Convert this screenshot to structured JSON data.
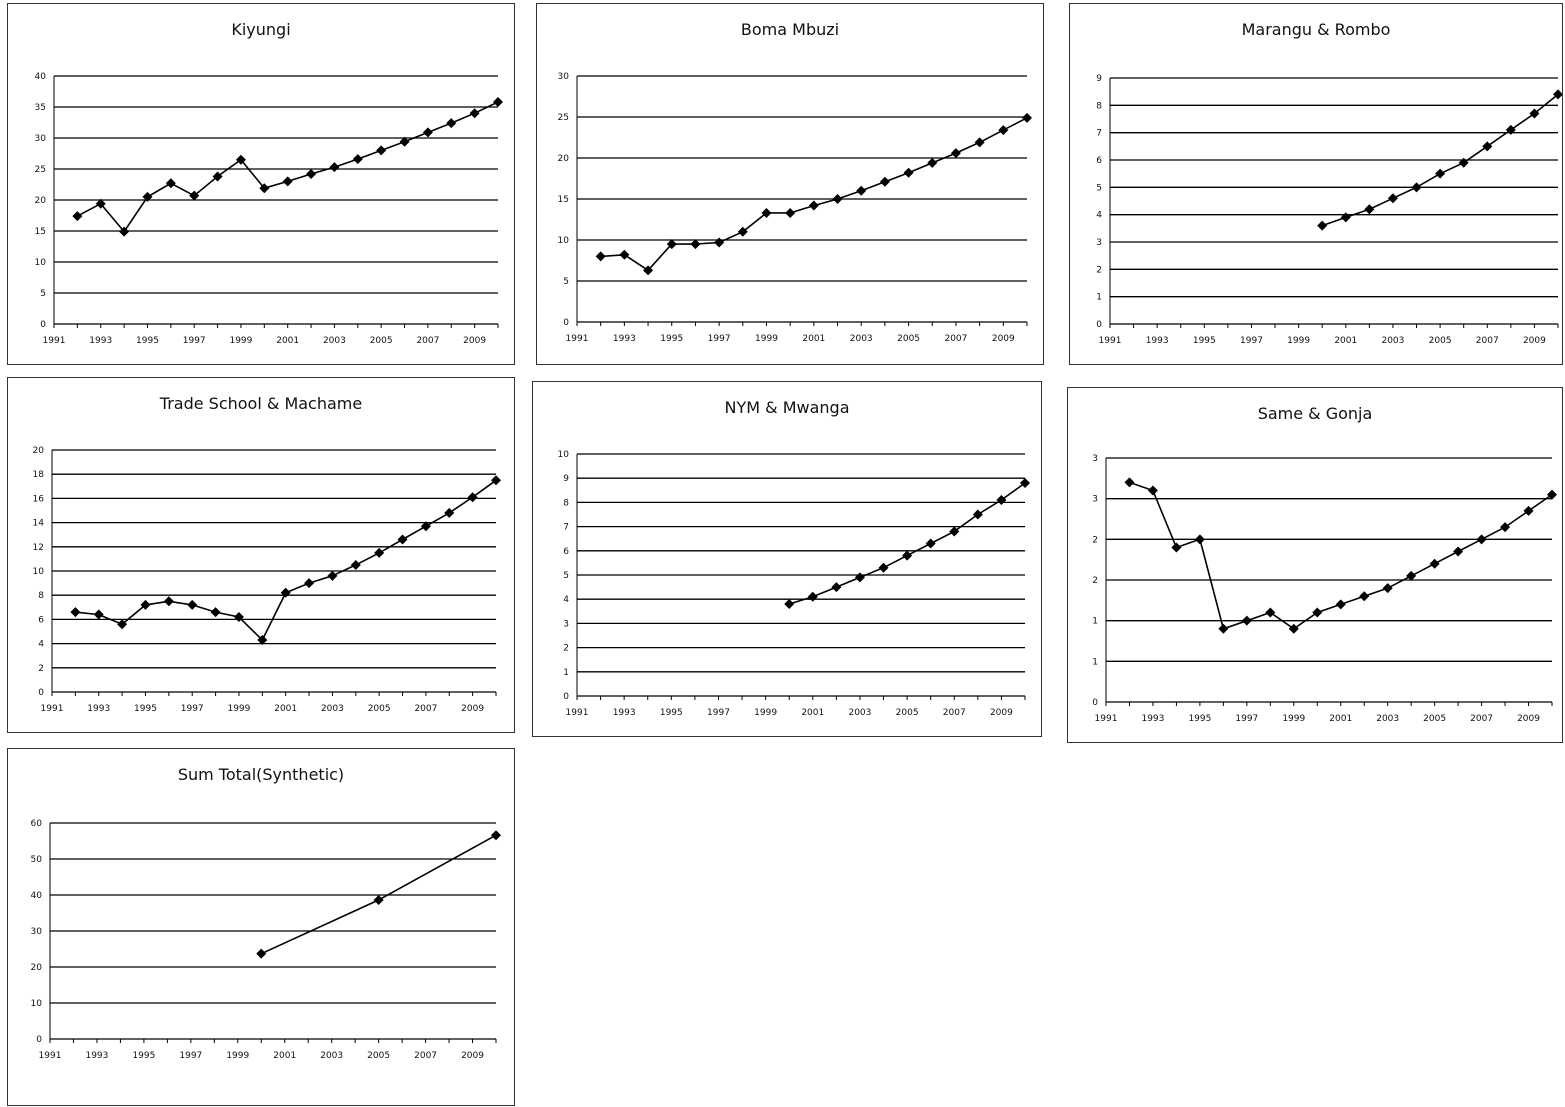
{
  "chart_data": [
    {
      "type": "line",
      "title": "Kiyungi",
      "x": [
        1992,
        1993,
        1994,
        1995,
        1996,
        1997,
        1998,
        1999,
        2000,
        2001,
        2002,
        2003,
        2004,
        2005,
        2006,
        2007,
        2008,
        2009,
        2010
      ],
      "values": [
        17.4,
        19.4,
        14.9,
        20.5,
        22.7,
        20.7,
        23.8,
        26.5,
        21.9,
        23.0,
        24.2,
        25.3,
        26.6,
        28.0,
        29.4,
        30.9,
        32.4,
        34.0,
        35.8
      ],
      "ylim": [
        0,
        40
      ],
      "yticks": [
        0,
        5,
        10,
        15,
        20,
        25,
        30,
        35,
        40
      ],
      "xlim": [
        1991,
        2010
      ],
      "xticks": [
        1991,
        1993,
        1995,
        1997,
        1999,
        2001,
        2003,
        2005,
        2007,
        2009
      ],
      "xlabel": "",
      "ylabel": "",
      "grid": true,
      "legend": "none"
    },
    {
      "type": "line",
      "title": "Boma Mbuzi",
      "x": [
        1992,
        1993,
        1994,
        1995,
        1996,
        1997,
        1998,
        1999,
        2000,
        2001,
        2002,
        2003,
        2004,
        2005,
        2006,
        2007,
        2008,
        2009,
        2010
      ],
      "values": [
        8.0,
        8.2,
        6.3,
        9.5,
        9.5,
        9.7,
        11.0,
        13.3,
        13.3,
        14.2,
        15.0,
        16.0,
        17.1,
        18.2,
        19.4,
        20.6,
        21.9,
        23.4,
        24.9
      ],
      "ylim": [
        0,
        30
      ],
      "yticks": [
        0,
        5,
        10,
        15,
        20,
        25,
        30
      ],
      "xlim": [
        1991,
        2010
      ],
      "xticks": [
        1991,
        1993,
        1995,
        1997,
        1999,
        2001,
        2003,
        2005,
        2007,
        2009
      ],
      "xlabel": "",
      "ylabel": "",
      "grid": true,
      "legend": "none"
    },
    {
      "type": "line",
      "title": "Marangu & Rombo",
      "x": [
        2000,
        2001,
        2002,
        2003,
        2004,
        2005,
        2006,
        2007,
        2008,
        2009,
        2010
      ],
      "values": [
        3.6,
        3.9,
        4.2,
        4.6,
        5.0,
        5.5,
        5.9,
        6.5,
        7.1,
        7.7,
        8.4
      ],
      "ylim": [
        0,
        9
      ],
      "yticks": [
        0,
        1,
        2,
        3,
        4,
        5,
        6,
        7,
        8,
        9
      ],
      "xlim": [
        1991,
        2010
      ],
      "xticks": [
        1991,
        1993,
        1995,
        1997,
        1999,
        2001,
        2003,
        2005,
        2007,
        2009
      ],
      "xlabel": "",
      "ylabel": "",
      "grid": true,
      "legend": "none"
    },
    {
      "type": "line",
      "title": "Trade School & Machame",
      "x": [
        1992,
        1993,
        1994,
        1995,
        1996,
        1997,
        1998,
        1999,
        2000,
        2001,
        2002,
        2003,
        2004,
        2005,
        2006,
        2007,
        2008,
        2009,
        2010
      ],
      "values": [
        6.6,
        6.4,
        5.6,
        7.2,
        7.5,
        7.2,
        6.6,
        6.2,
        4.3,
        8.2,
        9.0,
        9.6,
        10.5,
        11.5,
        12.6,
        13.7,
        14.8,
        16.1,
        17.5
      ],
      "ylim": [
        0,
        20
      ],
      "yticks": [
        0,
        2,
        4,
        6,
        8,
        10,
        12,
        14,
        16,
        18,
        20
      ],
      "xlim": [
        1991,
        2010
      ],
      "xticks": [
        1991,
        1993,
        1995,
        1997,
        1999,
        2001,
        2003,
        2005,
        2007,
        2009
      ],
      "xlabel": "",
      "ylabel": "",
      "grid": true,
      "legend": "none"
    },
    {
      "type": "line",
      "title": "NYM & Mwanga",
      "x": [
        2000,
        2001,
        2002,
        2003,
        2004,
        2005,
        2006,
        2007,
        2008,
        2009,
        2010
      ],
      "values": [
        3.8,
        4.1,
        4.5,
        4.9,
        5.3,
        5.8,
        6.3,
        6.8,
        7.5,
        8.1,
        8.8
      ],
      "ylim": [
        0,
        10
      ],
      "yticks": [
        0,
        1,
        2,
        3,
        4,
        5,
        6,
        7,
        8,
        9,
        10
      ],
      "xlim": [
        1991,
        2010
      ],
      "xticks": [
        1991,
        1993,
        1995,
        1997,
        1999,
        2001,
        2003,
        2005,
        2007,
        2009
      ],
      "xlabel": "",
      "ylabel": "",
      "grid": true,
      "legend": "none"
    },
    {
      "type": "line",
      "title": "Same & Gonja",
      "x": [
        1992,
        1993,
        1994,
        1995,
        1996,
        1997,
        1998,
        1999,
        2000,
        2001,
        2002,
        2003,
        2004,
        2005,
        2006,
        2007,
        2008,
        2009,
        2010
      ],
      "values": [
        2.7,
        2.6,
        1.9,
        2.0,
        0.9,
        1.0,
        1.1,
        0.9,
        1.1,
        1.2,
        1.3,
        1.4,
        1.55,
        1.7,
        1.85,
        2.0,
        2.15,
        2.35,
        2.55
      ],
      "ylim": [
        0,
        3
      ],
      "yticks": [
        0,
        0.5,
        1,
        1.5,
        2,
        2.5,
        3
      ],
      "ytick_labels": [
        "0",
        "1",
        "1",
        "2",
        "2",
        "3",
        "3"
      ],
      "xlim": [
        1991,
        2010
      ],
      "xticks": [
        1991,
        1993,
        1995,
        1997,
        1999,
        2001,
        2003,
        2005,
        2007,
        2009
      ],
      "xlabel": "",
      "ylabel": "",
      "grid": true,
      "legend": "none"
    },
    {
      "type": "line",
      "title": "Sum Total(Synthetic)",
      "x": [
        2000,
        2005,
        2010
      ],
      "values": [
        23.7,
        38.6,
        56.6
      ],
      "ylim": [
        0,
        60
      ],
      "yticks": [
        0,
        10,
        20,
        30,
        40,
        50,
        60
      ],
      "xlim": [
        1991,
        2010
      ],
      "xticks": [
        1991,
        1993,
        1995,
        1997,
        1999,
        2001,
        2003,
        2005,
        2007,
        2009
      ],
      "xlabel": "",
      "ylabel": "",
      "grid": true,
      "legend": "none"
    }
  ]
}
